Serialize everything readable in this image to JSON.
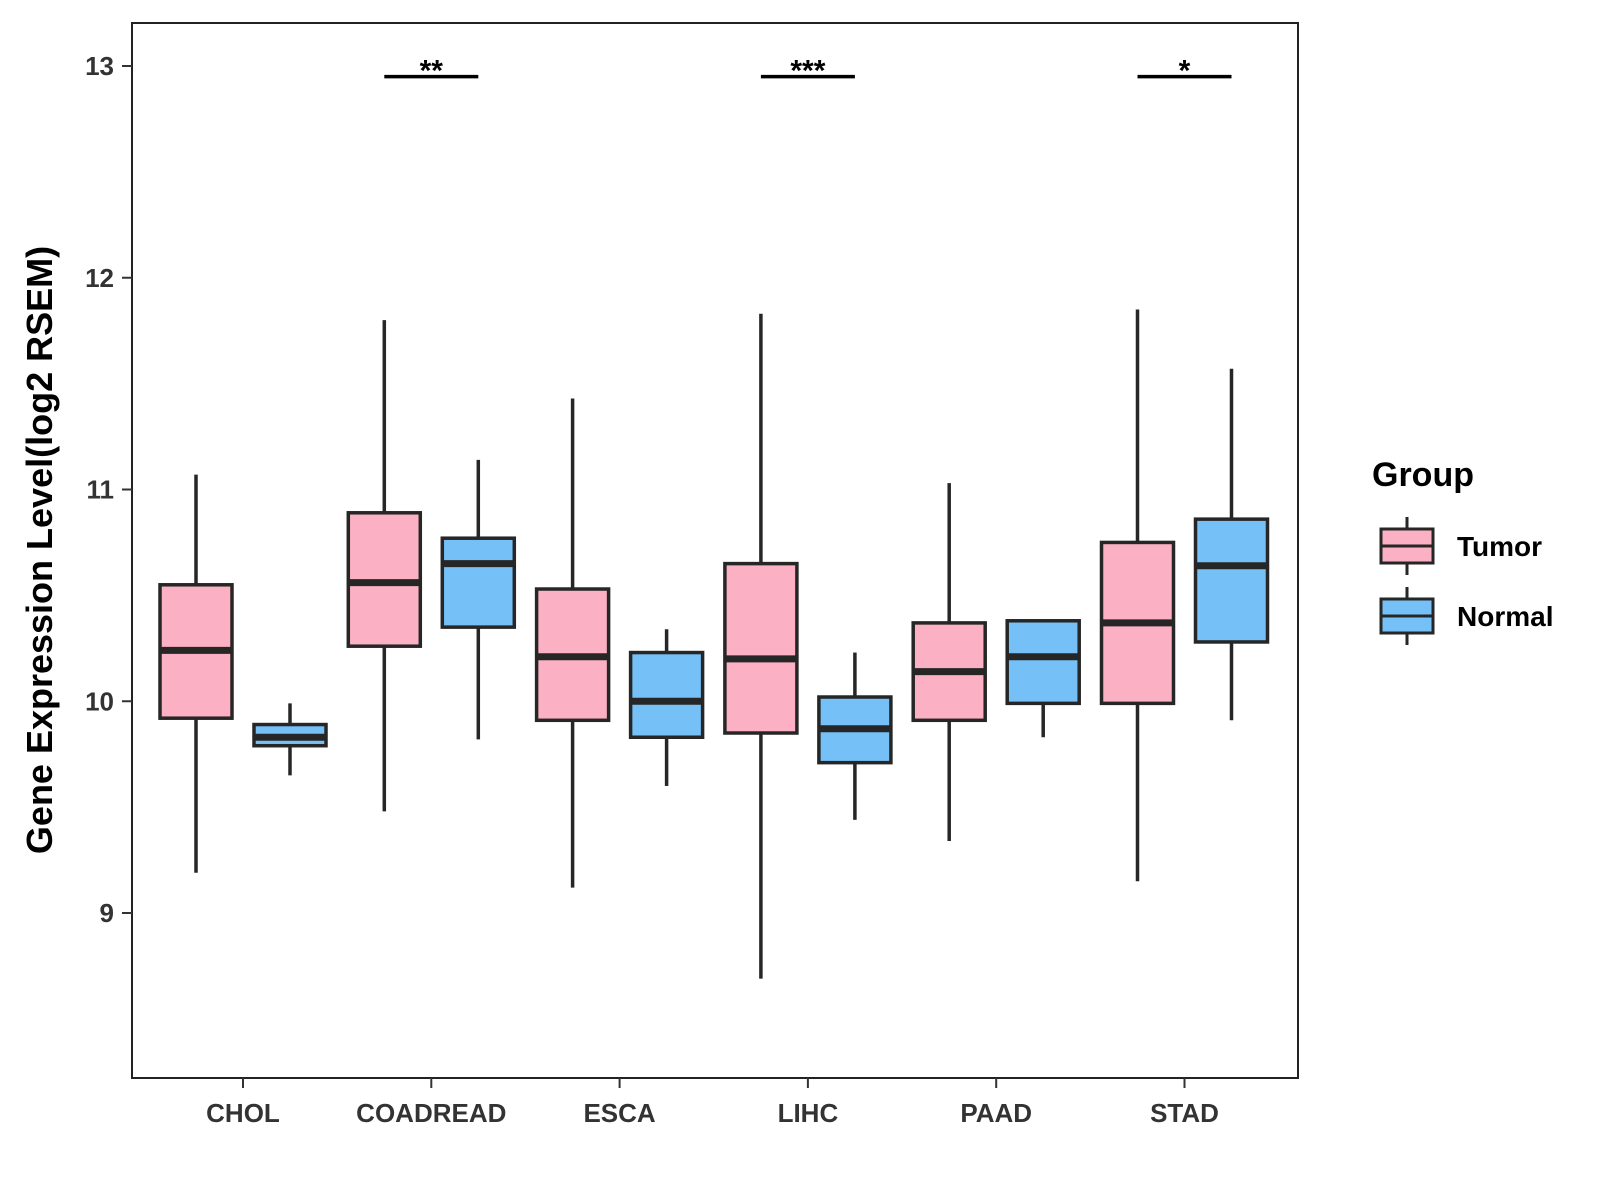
{
  "chart_data": {
    "type": "boxplot",
    "title": "",
    "xlabel": "",
    "ylabel": "Gene Expression Level(log2 RSEM)",
    "ylim": [
      8.3,
      13.2
    ],
    "yticks": [
      9,
      10,
      11,
      12,
      13
    ],
    "grid": false,
    "legend": {
      "title": "Group",
      "placement": "right",
      "entries": [
        {
          "name": "Tumor",
          "color": "#FBB1C3"
        },
        {
          "name": "Normal",
          "color": "#75C1F7"
        }
      ]
    },
    "categories": [
      "CHOL",
      "COADREAD",
      "ESCA",
      "LIHC",
      "PAAD",
      "STAD"
    ],
    "series": [
      {
        "name": "Tumor",
        "color": "#FBB1C3",
        "boxes": [
          {
            "min": 9.19,
            "q1": 9.92,
            "median": 10.24,
            "q3": 10.55,
            "max": 11.07
          },
          {
            "min": 9.48,
            "q1": 10.26,
            "median": 10.56,
            "q3": 10.89,
            "max": 11.8
          },
          {
            "min": 9.12,
            "q1": 9.91,
            "median": 10.21,
            "q3": 10.53,
            "max": 11.43
          },
          {
            "min": 8.69,
            "q1": 9.85,
            "median": 10.2,
            "q3": 10.65,
            "max": 11.83
          },
          {
            "min": 9.34,
            "q1": 9.91,
            "median": 10.14,
            "q3": 10.37,
            "max": 11.03
          },
          {
            "min": 9.15,
            "q1": 9.99,
            "median": 10.37,
            "q3": 10.75,
            "max": 11.85
          }
        ]
      },
      {
        "name": "Normal",
        "color": "#75C1F7",
        "boxes": [
          {
            "min": 9.65,
            "q1": 9.79,
            "median": 9.83,
            "q3": 9.89,
            "max": 9.99
          },
          {
            "min": 9.82,
            "q1": 10.35,
            "median": 10.65,
            "q3": 10.77,
            "max": 11.14
          },
          {
            "min": 9.6,
            "q1": 9.83,
            "median": 10.0,
            "q3": 10.23,
            "max": 10.34
          },
          {
            "min": 9.44,
            "q1": 9.71,
            "median": 9.87,
            "q3": 10.02,
            "max": 10.23
          },
          {
            "min": 9.83,
            "q1": 9.99,
            "median": 10.21,
            "q3": 10.38,
            "max": 10.38
          },
          {
            "min": 9.91,
            "q1": 10.28,
            "median": 10.64,
            "q3": 10.86,
            "max": 11.57
          }
        ]
      }
    ],
    "annotations": [
      {
        "category": "COADREAD",
        "label": "**",
        "y": 12.95
      },
      {
        "category": "LIHC",
        "label": "***",
        "y": 12.95
      },
      {
        "category": "STAD",
        "label": "*",
        "y": 12.95
      }
    ]
  }
}
